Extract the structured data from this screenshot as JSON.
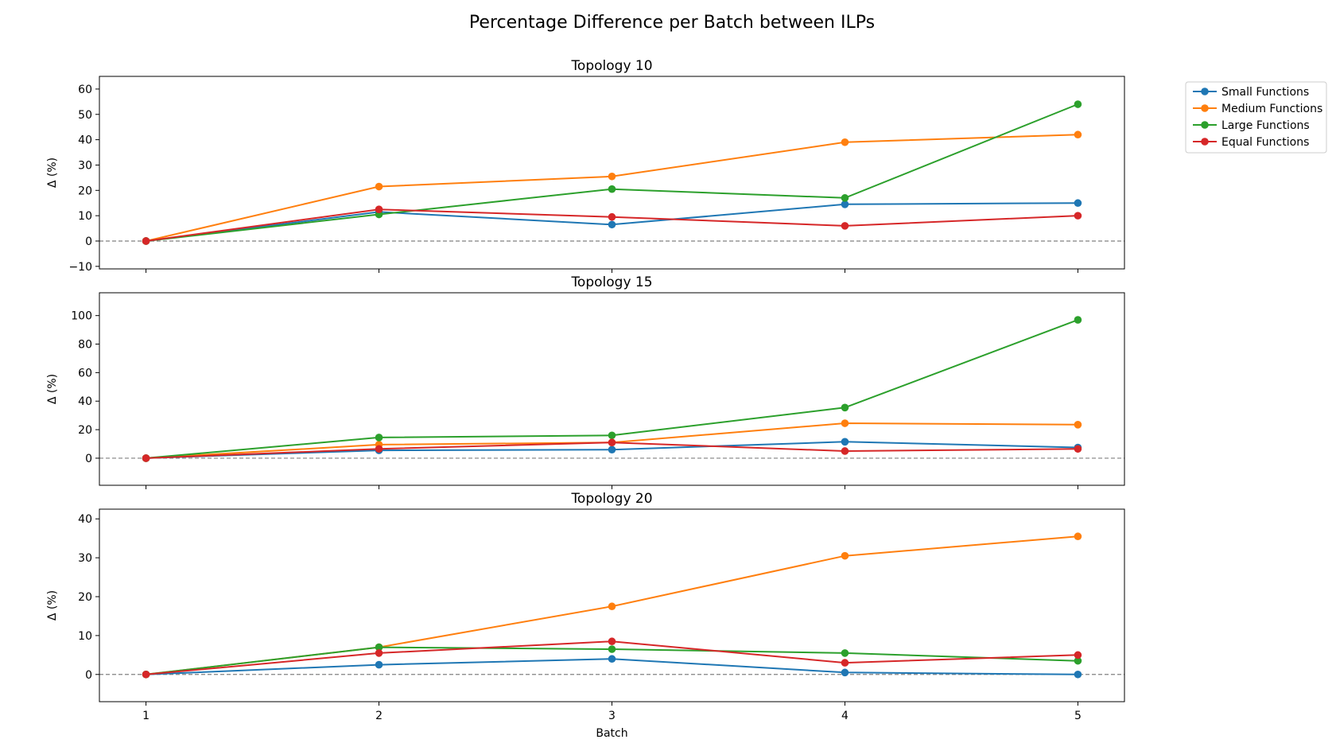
{
  "title": "Percentage Difference per Batch between ILPs",
  "series_colors": {
    "Small Functions": "#1f77b4",
    "Medium Functions": "#ff7f0e",
    "Large Functions": "#2ca02c",
    "Equal Functions": "#d62728"
  },
  "legend": {
    "placement": "right, outside top",
    "entries": [
      "Small Functions",
      "Medium Functions",
      "Large Functions",
      "Equal Functions"
    ]
  },
  "chart_data": [
    {
      "type": "line",
      "title": "Topology 10",
      "xlabel": "",
      "ylabel": "Δ (%)",
      "x": [
        1,
        2,
        3,
        4,
        5
      ],
      "xticks": [
        "1",
        "2",
        "3",
        "4",
        "5"
      ],
      "ylim": [
        -11,
        65
      ],
      "yticks": [
        "−10",
        "0",
        "10",
        "20",
        "30",
        "40",
        "50",
        "60"
      ],
      "ytick_values": [
        -10,
        0,
        10,
        20,
        30,
        40,
        50,
        60
      ],
      "reference_line": 0,
      "grid": false,
      "series": [
        {
          "name": "Small Functions",
          "values": [
            0,
            11.5,
            6.5,
            14.5,
            15
          ]
        },
        {
          "name": "Medium Functions",
          "values": [
            0,
            21.5,
            25.5,
            39,
            42
          ]
        },
        {
          "name": "Large Functions",
          "values": [
            0,
            10.5,
            20.5,
            17,
            54
          ]
        },
        {
          "name": "Equal Functions",
          "values": [
            0,
            12.5,
            9.5,
            6,
            10
          ]
        }
      ]
    },
    {
      "type": "line",
      "title": "Topology 15",
      "xlabel": "",
      "ylabel": "Δ (%)",
      "x": [
        1,
        2,
        3,
        4,
        5
      ],
      "xticks": [
        "1",
        "2",
        "3",
        "4",
        "5"
      ],
      "ylim": [
        -19,
        116
      ],
      "yticks": [
        "0",
        "20",
        "40",
        "60",
        "80",
        "100"
      ],
      "ytick_values": [
        0,
        20,
        40,
        60,
        80,
        100
      ],
      "reference_line": 0,
      "grid": false,
      "series": [
        {
          "name": "Small Functions",
          "values": [
            0,
            5.5,
            6,
            11.5,
            7.5
          ]
        },
        {
          "name": "Medium Functions",
          "values": [
            0,
            9.5,
            11,
            24.5,
            23.5
          ]
        },
        {
          "name": "Large Functions",
          "values": [
            0,
            14.5,
            16,
            35.5,
            97
          ]
        },
        {
          "name": "Equal Functions",
          "values": [
            0,
            6.5,
            11,
            5,
            6.5
          ]
        }
      ]
    },
    {
      "type": "line",
      "title": "Topology 20",
      "xlabel": "Batch",
      "ylabel": "Δ (%)",
      "x": [
        1,
        2,
        3,
        4,
        5
      ],
      "xticks": [
        "1",
        "2",
        "3",
        "4",
        "5"
      ],
      "ylim": [
        -7,
        42.5
      ],
      "yticks": [
        "0",
        "10",
        "20",
        "30",
        "40"
      ],
      "ytick_values": [
        0,
        10,
        20,
        30,
        40
      ],
      "reference_line": 0,
      "grid": false,
      "series": [
        {
          "name": "Small Functions",
          "values": [
            0,
            2.5,
            4,
            0.5,
            0
          ]
        },
        {
          "name": "Medium Functions",
          "values": [
            0,
            7,
            17.5,
            30.5,
            35.5
          ]
        },
        {
          "name": "Large Functions",
          "values": [
            0,
            7,
            6.5,
            5.5,
            3.5
          ]
        },
        {
          "name": "Equal Functions",
          "values": [
            0,
            5.5,
            8.5,
            3,
            5
          ]
        }
      ]
    }
  ]
}
